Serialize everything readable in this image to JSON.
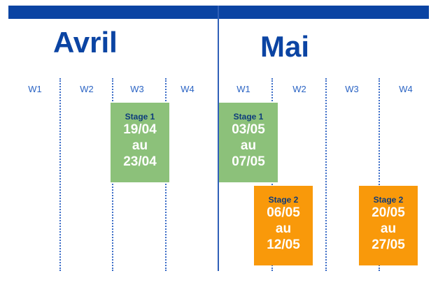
{
  "months": {
    "april": "Avril",
    "may": "Mai"
  },
  "weeks": {
    "april": [
      "W1",
      "W2",
      "W3",
      "W4"
    ],
    "may": [
      "W1",
      "W2",
      "W3",
      "W4"
    ]
  },
  "tasks": [
    {
      "stage": "Stage 1",
      "start": "19/04",
      "connector": "au",
      "end": "23/04",
      "color": "#8cc17a"
    },
    {
      "stage": "Stage 1",
      "start": "03/05",
      "connector": "au",
      "end": "07/05",
      "color": "#8cc17a"
    },
    {
      "stage": "Stage 2",
      "start": "06/05",
      "connector": "au",
      "end": "12/05",
      "color": "#f9990a"
    },
    {
      "stage": "Stage 2",
      "start": "20/05",
      "connector": "au",
      "end": "27/05",
      "color": "#f9990a"
    }
  ],
  "colors": {
    "header": "#0b44a3",
    "grid": "#3b6cc7",
    "text_blue": "#2b64c4"
  }
}
